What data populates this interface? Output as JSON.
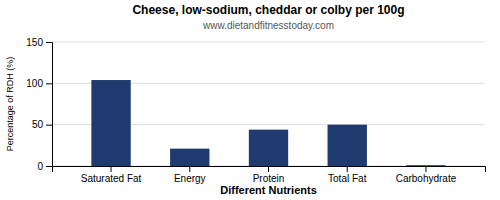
{
  "chart_data": {
    "type": "bar",
    "title": "Cheese, low-sodium, cheddar or colby per 100g",
    "subtitle": "www.dietandfitnesstoday.com",
    "xlabel": "Different Nutrients",
    "ylabel": "Percentage of RDH (%)",
    "categories": [
      "Saturated Fat",
      "Energy",
      "Protein",
      "Total Fat",
      "Carbohydrate"
    ],
    "values": [
      104,
      21,
      44,
      50,
      1
    ],
    "color": "#1e3a6e",
    "ylim": [
      0,
      150
    ],
    "yticks": [
      0,
      50,
      100,
      150
    ],
    "grid": true
  }
}
